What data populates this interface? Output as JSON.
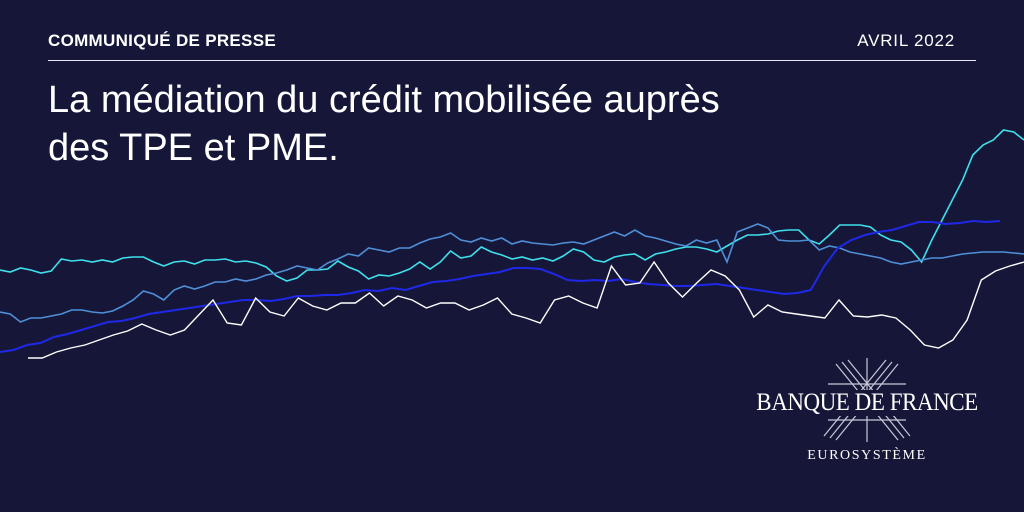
{
  "header": {
    "kicker": "COMMUNIQUÉ DE PRESSE",
    "date": "AVRIL 2022"
  },
  "headline": {
    "line1": "La médiation du crédit mobilisée auprès",
    "line2": "des TPE et PME."
  },
  "brand": {
    "name": "BANQUE DE FRANCE",
    "subtitle": "EUROSYSTÈME"
  },
  "colors": {
    "background": "#161738",
    "text": "#ffffff"
  },
  "decorative_series": [
    {
      "color": "#3ee0ec",
      "values": [
        270,
        272,
        268,
        270,
        273,
        271,
        259,
        261,
        260,
        262,
        260,
        262,
        258,
        257,
        257,
        262,
        266,
        262,
        261,
        264,
        260,
        260,
        259,
        262,
        261,
        263,
        267,
        276,
        281,
        278,
        270,
        270,
        269,
        261,
        267,
        271,
        279,
        275,
        276,
        273,
        269,
        262,
        269,
        262,
        251,
        258,
        256,
        247,
        252,
        255,
        259,
        257,
        260,
        258,
        261,
        256,
        249,
        252,
        260,
        262,
        257,
        255,
        254,
        260,
        254,
        252,
        249,
        247,
        247,
        249,
        252,
        246,
        240,
        235,
        235,
        234,
        231,
        230,
        230,
        240,
        244,
        235,
        225,
        225,
        225,
        227,
        235,
        240,
        242,
        250,
        262,
        240,
        220,
        200,
        180,
        155,
        145,
        140,
        130,
        132,
        140
      ]
    },
    {
      "color": "#4f8fd8",
      "values": [
        312,
        314,
        322,
        318,
        318,
        316,
        314,
        310,
        310,
        312,
        313,
        311,
        306,
        300,
        291,
        294,
        300,
        290,
        286,
        289,
        286,
        282,
        282,
        279,
        281,
        279,
        275,
        273,
        270,
        266,
        268,
        270,
        263,
        259,
        254,
        256,
        248,
        250,
        252,
        248,
        248,
        243,
        239,
        237,
        233,
        240,
        242,
        238,
        241,
        238,
        244,
        241,
        243,
        244,
        245,
        243,
        242,
        244,
        240,
        236,
        232,
        236,
        230,
        236,
        238,
        241,
        244,
        246,
        240,
        243,
        240,
        262,
        232,
        228,
        224,
        228,
        240,
        241,
        241,
        240,
        250,
        246,
        248,
        252,
        254,
        256,
        258,
        262,
        264,
        262,
        260,
        258,
        258,
        256,
        254,
        253,
        252,
        252,
        252,
        253,
        254
      ]
    },
    {
      "color": "#1f28e8",
      "values": [
        352,
        350,
        345,
        343,
        337,
        334,
        330,
        326,
        322,
        321,
        318,
        314,
        312,
        310,
        308,
        306,
        304,
        302,
        300,
        300,
        301,
        299,
        296,
        296,
        295,
        295,
        293,
        290,
        291,
        288,
        290,
        286,
        282,
        281,
        279,
        276,
        274,
        272,
        268,
        268,
        269,
        274,
        280,
        281,
        280,
        281,
        279,
        282,
        284,
        285,
        286,
        286,
        285,
        284,
        286,
        288,
        290,
        292,
        294,
        293,
        290,
        266,
        248,
        240,
        235,
        232,
        230,
        226,
        222,
        222,
        224,
        223,
        221,
        222,
        221
      ]
    },
    {
      "color": "#ffffff",
      "values": [
        358,
        358,
        352,
        348,
        345,
        340,
        335,
        331,
        324,
        330,
        335,
        330,
        315,
        300,
        323,
        325,
        298,
        312,
        316,
        298,
        306,
        310,
        303,
        303,
        293,
        306,
        296,
        300,
        308,
        303,
        303,
        310,
        305,
        298,
        314,
        318,
        323,
        300,
        296,
        303,
        308,
        266,
        285,
        283,
        262,
        283,
        297,
        283,
        270,
        276,
        290,
        317,
        305,
        312,
        314,
        316,
        318,
        300,
        316,
        317,
        315,
        318,
        330,
        345,
        348,
        340,
        320,
        280,
        271,
        266,
        262
      ]
    }
  ]
}
